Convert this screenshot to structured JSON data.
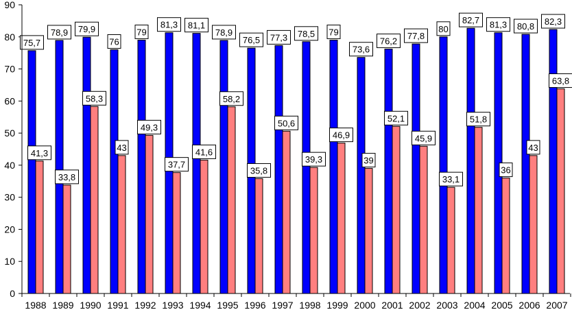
{
  "chart_data": {
    "type": "bar",
    "categories": [
      "1988",
      "1989",
      "1990",
      "1991",
      "1992",
      "1993",
      "1994",
      "1995",
      "1996",
      "1997",
      "1998",
      "1999",
      "2000",
      "2001",
      "2002",
      "2003",
      "2004",
      "2005",
      "2006",
      "2007"
    ],
    "series": [
      {
        "color": "#0000ff",
        "values": [
          75.7,
          78.9,
          79.9,
          76,
          79,
          81.3,
          81.1,
          78.9,
          76.5,
          77.3,
          78.5,
          79,
          73.6,
          76.2,
          77.8,
          80,
          82.7,
          81.3,
          80.8,
          82.3
        ],
        "labels": [
          "75,7",
          "78,9",
          "79,9",
          "76",
          "79",
          "81,3",
          "81,1",
          "78,9",
          "76,5",
          "77,3",
          "78,5",
          "79",
          "73,6",
          "76,2",
          "77,8",
          "80",
          "82,7",
          "81,3",
          "80,8",
          "82,3"
        ]
      },
      {
        "color": "#ff7f7f",
        "values": [
          41.3,
          33.8,
          58.3,
          43,
          49.3,
          37.7,
          41.6,
          58.2,
          35.8,
          50.6,
          39.3,
          46.9,
          39,
          52.1,
          45.9,
          33.1,
          51.8,
          36,
          43,
          63.8
        ],
        "labels": [
          "41,3",
          "33,8",
          "58,3",
          "43",
          "49,3",
          "37,7",
          "41,6",
          "58,2",
          "35,8",
          "50,6",
          "39,3",
          "46,9",
          "39",
          "52,1",
          "45,9",
          "33,1",
          "51,8",
          "36",
          "43",
          "63,8"
        ]
      }
    ],
    "y_ticks": [
      "0",
      "10",
      "20",
      "30",
      "40",
      "50",
      "60",
      "70",
      "80",
      "90"
    ],
    "ylim": [
      0,
      90
    ],
    "grid": false,
    "legend": "none",
    "title": "",
    "xlabel": "",
    "ylabel": ""
  }
}
